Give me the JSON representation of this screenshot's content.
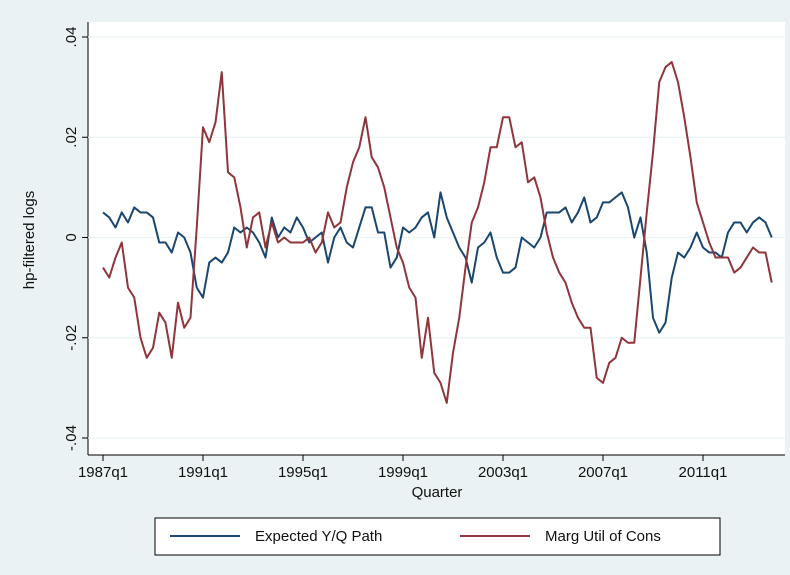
{
  "chart_data": {
    "type": "line",
    "y_label": "hp-filtered logs",
    "x_label": "Quarter",
    "categories": [
      "1987q1",
      null,
      null,
      null,
      null,
      null,
      null,
      null,
      null,
      null,
      null,
      null,
      null,
      null,
      null,
      null,
      "1991q1",
      null,
      null,
      null,
      null,
      null,
      null,
      null,
      null,
      null,
      null,
      null,
      null,
      null,
      null,
      null,
      "1995q1",
      null,
      null,
      null,
      null,
      null,
      null,
      null,
      null,
      null,
      null,
      null,
      null,
      null,
      null,
      null,
      "1999q1",
      null,
      null,
      null,
      null,
      null,
      null,
      null,
      null,
      null,
      null,
      null,
      null,
      null,
      null,
      null,
      "2003q1",
      null,
      null,
      null,
      null,
      null,
      null,
      null,
      null,
      null,
      null,
      null,
      null,
      null,
      null,
      null,
      "2007q1",
      null,
      null,
      null,
      null,
      null,
      null,
      null,
      null,
      null,
      null,
      null,
      null,
      null,
      null,
      null,
      "2011q1",
      null,
      null,
      null,
      null,
      null,
      null,
      null,
      null,
      null,
      null,
      null
    ],
    "series": [
      {
        "name": "Expected Y/Q Path",
        "color": "#1a476f",
        "values": [
          0.005,
          0.004,
          0.002,
          0.005,
          0.003,
          0.006,
          0.005,
          0.005,
          0.004,
          -0.001,
          -0.001,
          -0.003,
          0.001,
          0.0,
          -0.003,
          -0.01,
          -0.012,
          -0.005,
          -0.004,
          -0.005,
          -0.003,
          0.002,
          0.001,
          0.002,
          0.001,
          -0.001,
          -0.004,
          0.004,
          0.0,
          0.002,
          0.001,
          0.004,
          0.002,
          -0.001,
          0.0,
          0.001,
          -0.005,
          0.0,
          0.002,
          -0.001,
          -0.002,
          0.002,
          0.006,
          0.006,
          0.001,
          0.001,
          -0.006,
          -0.004,
          0.002,
          0.001,
          0.002,
          0.004,
          0.005,
          0.0,
          0.009,
          0.004,
          0.001,
          -0.002,
          -0.004,
          -0.009,
          -0.002,
          -0.001,
          0.001,
          -0.004,
          -0.007,
          -0.007,
          -0.006,
          0.0,
          -0.001,
          -0.002,
          0.0,
          0.005,
          0.005,
          0.005,
          0.006,
          0.003,
          0.005,
          0.008,
          0.003,
          0.004,
          0.007,
          0.007,
          0.008,
          0.009,
          0.006,
          0.0,
          0.004,
          -0.003,
          -0.016,
          -0.019,
          -0.017,
          -0.008,
          -0.003,
          -0.004,
          -0.002,
          0.001,
          -0.002,
          -0.003,
          -0.003,
          -0.004,
          0.001,
          0.003,
          0.003,
          0.001,
          0.003,
          0.004,
          0.003,
          0.0
        ]
      },
      {
        "name": "Marg Util of Cons",
        "color": "#90353b",
        "values": [
          -0.006,
          -0.008,
          -0.004,
          -0.001,
          -0.01,
          -0.012,
          -0.02,
          -0.024,
          -0.022,
          -0.015,
          -0.017,
          -0.024,
          -0.013,
          -0.018,
          -0.016,
          0.002,
          0.022,
          0.019,
          0.023,
          0.033,
          0.013,
          0.012,
          0.006,
          -0.002,
          0.004,
          0.005,
          -0.002,
          0.003,
          -0.001,
          0.0,
          -0.001,
          -0.001,
          -0.001,
          0.0,
          -0.003,
          -0.001,
          0.005,
          0.002,
          0.003,
          0.01,
          0.015,
          0.018,
          0.024,
          0.016,
          0.014,
          0.01,
          0.004,
          -0.002,
          -0.005,
          -0.01,
          -0.012,
          -0.024,
          -0.016,
          -0.027,
          -0.029,
          -0.033,
          -0.023,
          -0.016,
          -0.006,
          0.003,
          0.006,
          0.011,
          0.018,
          0.018,
          0.024,
          0.024,
          0.018,
          0.019,
          0.011,
          0.012,
          0.008,
          0.001,
          -0.004,
          -0.007,
          -0.009,
          -0.013,
          -0.016,
          -0.018,
          -0.018,
          -0.028,
          -0.029,
          -0.025,
          -0.024,
          -0.02,
          -0.021,
          -0.021,
          -0.008,
          0.005,
          0.017,
          0.031,
          0.034,
          0.035,
          0.031,
          0.024,
          0.016,
          0.007,
          0.003,
          -0.001,
          -0.004,
          -0.004,
          -0.004,
          -0.007,
          -0.006,
          -0.004,
          -0.002,
          -0.003,
          -0.003,
          -0.009
        ]
      }
    ],
    "ylim": [
      -0.04,
      0.04
    ],
    "yticks": [
      {
        "value": -0.04,
        "label": "-.04"
      },
      {
        "value": -0.02,
        "label": "-.02"
      },
      0,
      {
        "value": 0.02,
        "label": ".02"
      },
      {
        "value": 0.04,
        "label": ".04"
      }
    ],
    "grid": true,
    "legend": "bottom"
  }
}
